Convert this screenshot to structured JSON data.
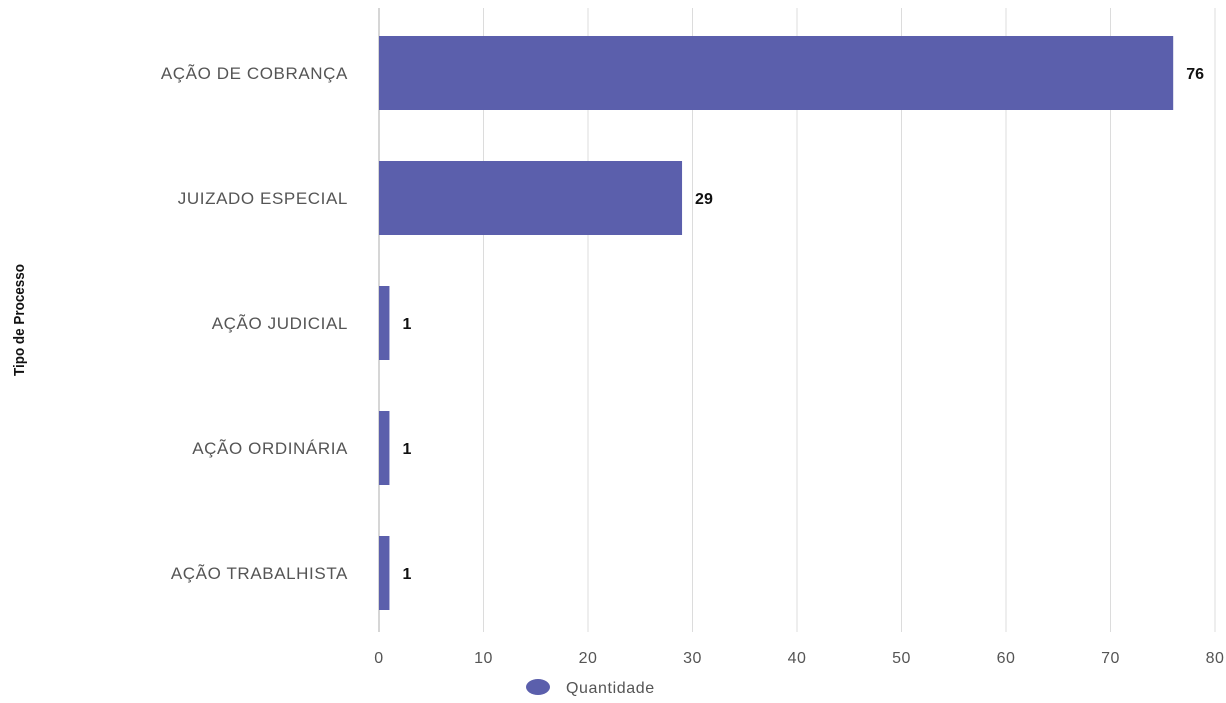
{
  "chart_data": {
    "type": "bar",
    "orientation": "horizontal",
    "categories": [
      "AÇÃO DE COBRANÇA",
      "JUIZADO ESPECIAL",
      "AÇÃO JUDICIAL",
      "AÇÃO ORDINÁRIA",
      "AÇÃO TRABALHISTA"
    ],
    "series": [
      {
        "name": "Quantidade",
        "values": [
          76,
          29,
          1,
          1,
          1
        ],
        "color": "#5b5fac"
      }
    ],
    "data_labels": [
      "76",
      "29",
      "1",
      "1",
      "1"
    ],
    "xlim": [
      0,
      80
    ],
    "x_ticks": [
      0,
      10,
      20,
      30,
      40,
      50,
      60,
      70,
      80
    ],
    "ylabel": "Tipo de Processo",
    "xlabel": "",
    "grid": true,
    "legend": {
      "position": "bottom-center",
      "entries": [
        "Quantidade"
      ]
    },
    "colors": {
      "bar": "#5b5fac",
      "grid": "#dcdcdc",
      "category_text": "#555555",
      "tick_text": "#555555",
      "value_text": "#111111",
      "ylabel_text": "#111111"
    }
  }
}
